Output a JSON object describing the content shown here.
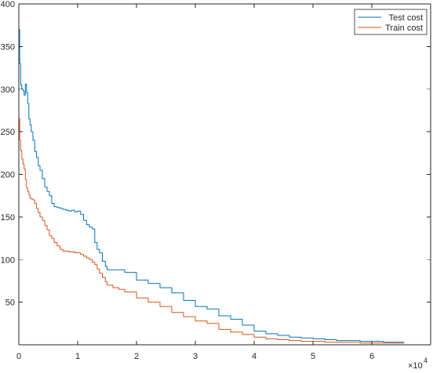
{
  "chart_data": {
    "type": "line",
    "title": "",
    "xlabel": "",
    "ylabel": "",
    "xlim": [
      0,
      70000
    ],
    "ylim": [
      0,
      400
    ],
    "x_exponent_label": "×10",
    "x_exponent_power": "4",
    "x_ticks": [
      {
        "value": 0,
        "label": "0"
      },
      {
        "value": 10000,
        "label": "1"
      },
      {
        "value": 20000,
        "label": "2"
      },
      {
        "value": 30000,
        "label": "3"
      },
      {
        "value": 40000,
        "label": "4"
      },
      {
        "value": 50000,
        "label": "5"
      },
      {
        "value": 60000,
        "label": "6"
      }
    ],
    "y_ticks": [
      {
        "value": 50,
        "label": "50"
      },
      {
        "value": 100,
        "label": "100"
      },
      {
        "value": 150,
        "label": "150"
      },
      {
        "value": 200,
        "label": "200"
      },
      {
        "value": 250,
        "label": "250"
      },
      {
        "value": 300,
        "label": "300"
      },
      {
        "value": 350,
        "label": "350"
      },
      {
        "value": 400,
        "label": "400"
      }
    ],
    "legend": {
      "position": "top-right",
      "boxed": true
    },
    "grid": false,
    "series": [
      {
        "name": "Test cost",
        "color": "#0072BD",
        "x": [
          0,
          150,
          300,
          500,
          700,
          900,
          1100,
          1300,
          1500,
          1700,
          1900,
          2100,
          2400,
          2700,
          3000,
          3300,
          3600,
          4000,
          4400,
          4800,
          5200,
          5600,
          6000,
          6500,
          7000,
          7500,
          8000,
          8500,
          9000,
          9500,
          10000,
          10500,
          11000,
          11500,
          12000,
          12500,
          12900,
          13300,
          13700,
          14200,
          14700,
          15000,
          16000,
          17000,
          18000,
          20000,
          22000,
          24000,
          26000,
          28000,
          30000,
          32000,
          34000,
          36000,
          38000,
          40000,
          42000,
          44000,
          46000,
          48000,
          50000,
          52000,
          54000,
          56000,
          58000,
          60000,
          62000,
          64000,
          65500
        ],
        "y": [
          370,
          330,
          305,
          300,
          298,
          293,
          306,
          296,
          283,
          265,
          258,
          250,
          240,
          227,
          220,
          210,
          205,
          195,
          185,
          180,
          175,
          166,
          162,
          161,
          160,
          159,
          158,
          157,
          158,
          156,
          157,
          153,
          146,
          141,
          138,
          136,
          120,
          112,
          108,
          98,
          92,
          88,
          88,
          88,
          85,
          76,
          72,
          67,
          61,
          52,
          45,
          42,
          34,
          30,
          23,
          16,
          13,
          11,
          9,
          8,
          7,
          6,
          5,
          5,
          4,
          4,
          3,
          3,
          3
        ]
      },
      {
        "name": "Train cost",
        "color": "#D95319",
        "x": [
          0,
          150,
          300,
          500,
          700,
          900,
          1100,
          1300,
          1500,
          1700,
          1900,
          2100,
          2400,
          2700,
          3000,
          3300,
          3600,
          4000,
          4400,
          4800,
          5200,
          5600,
          6000,
          6500,
          7000,
          7500,
          8000,
          8500,
          9000,
          9500,
          10000,
          10500,
          11000,
          11500,
          12000,
          12500,
          12900,
          13300,
          13700,
          14200,
          14700,
          15000,
          16000,
          17000,
          18000,
          20000,
          22000,
          24000,
          26000,
          28000,
          30000,
          32000,
          34000,
          36000,
          38000,
          40000,
          42000,
          44000,
          46000,
          48000,
          50000,
          52000,
          54000,
          56000,
          58000,
          60000,
          62000,
          64000,
          65500
        ],
        "y": [
          265,
          240,
          228,
          218,
          212,
          206,
          194,
          184,
          180,
          176,
          172,
          171,
          170,
          166,
          160,
          155,
          150,
          146,
          140,
          135,
          128,
          125,
          120,
          116,
          112,
          110,
          110,
          109,
          109,
          108,
          108,
          106,
          104,
          102,
          100,
          97,
          94,
          89,
          84,
          79,
          74,
          70,
          67,
          65,
          62,
          55,
          50,
          45,
          38,
          33,
          28,
          25,
          18,
          15,
          12,
          9,
          7,
          6,
          5,
          4,
          4,
          3,
          3,
          3,
          2,
          2,
          2,
          2,
          2
        ]
      }
    ]
  }
}
